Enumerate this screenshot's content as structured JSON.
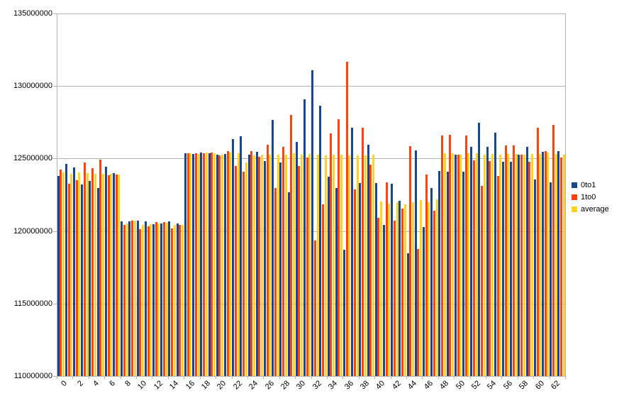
{
  "chart_data": {
    "type": "bar",
    "title": "",
    "xlabel": "",
    "ylabel": "",
    "legend_position": "right",
    "grid": "horizontal",
    "y_axis": {
      "min": 110000000,
      "max": 135000000,
      "step": 5000000,
      "tick_labels": [
        "110000000",
        "115000000",
        "120000000",
        "125000000",
        "130000000",
        "135000000"
      ]
    },
    "x_axis": {
      "labeled_every": 2,
      "tick_labels": [
        "0",
        "2",
        "4",
        "6",
        "8",
        "10",
        "12",
        "14",
        "16",
        "18",
        "20",
        "22",
        "24",
        "26",
        "28",
        "30",
        "32",
        "34",
        "36",
        "38",
        "40",
        "42",
        "44",
        "46",
        "48",
        "50",
        "52",
        "54",
        "56",
        "58",
        "60",
        "62"
      ]
    },
    "categories": [
      0,
      1,
      2,
      3,
      4,
      5,
      6,
      7,
      8,
      9,
      10,
      11,
      12,
      13,
      14,
      15,
      16,
      17,
      18,
      19,
      20,
      21,
      22,
      23,
      24,
      25,
      26,
      27,
      28,
      29,
      30,
      31,
      32,
      33,
      34,
      35,
      36,
      37,
      38,
      39,
      40,
      41,
      42,
      43,
      44,
      45,
      46,
      47,
      48,
      49,
      50,
      51,
      52,
      53,
      54,
      55,
      56,
      57,
      58,
      59,
      60,
      61,
      62,
      63
    ],
    "series": [
      {
        "name": "0to1",
        "color": "#17478f",
        "values": [
          123780000,
          124620000,
          124410000,
          123220000,
          123450000,
          122960000,
          124450000,
          124000000,
          120650000,
          120680000,
          120730000,
          120680000,
          120470000,
          120520000,
          120680000,
          120520000,
          125370000,
          125320000,
          125400000,
          125360000,
          125290000,
          125330000,
          126330000,
          126560000,
          125270000,
          125460000,
          124820000,
          127650000,
          124720000,
          122690000,
          126170000,
          129100000,
          131090000,
          128660000,
          123760000,
          122950000,
          118720000,
          127110000,
          123290000,
          125930000,
          123290000,
          120440000,
          123250000,
          122100000,
          118490000,
          125550000,
          120260000,
          122960000,
          124150000,
          124100000,
          125290000,
          124100000,
          125820000,
          127490000,
          125790000,
          126790000,
          124780000,
          124760000,
          125270000,
          125820000,
          123540000,
          125450000,
          123340000,
          125520000
        ]
      },
      {
        "name": "1to0",
        "color": "#ff420e",
        "values": [
          124250000,
          123270000,
          123500000,
          124710000,
          124360000,
          124900000,
          123870000,
          123910000,
          120410000,
          120720000,
          120110000,
          120320000,
          120600000,
          120630000,
          120160000,
          120440000,
          125350000,
          125350000,
          125370000,
          125400000,
          125240000,
          125520000,
          124460000,
          124100000,
          125530000,
          125130000,
          125950000,
          122960000,
          125820000,
          128000000,
          124480000,
          125050000,
          119370000,
          121830000,
          126740000,
          127690000,
          131660000,
          122880000,
          127110000,
          124590000,
          120930000,
          123370000,
          120730000,
          121550000,
          125840000,
          118760000,
          123900000,
          121400000,
          126590000,
          126620000,
          125290000,
          126590000,
          124880000,
          123130000,
          124830000,
          123810000,
          125890000,
          125890000,
          125270000,
          124800000,
          127110000,
          125500000,
          127310000,
          125080000
        ]
      },
      {
        "name": "average",
        "color": "#ffd320",
        "values": [
          124020000,
          123960000,
          124050000,
          123980000,
          123960000,
          123930000,
          123930000,
          123900000,
          120510000,
          120700000,
          120400000,
          120480000,
          120530000,
          120560000,
          120420000,
          120400000,
          125360000,
          125330000,
          125390000,
          125380000,
          125270000,
          125420000,
          125380000,
          124750000,
          125220000,
          125270000,
          125280000,
          125260000,
          125270000,
          125360000,
          125290000,
          125320000,
          125250000,
          125240000,
          125250000,
          125270000,
          125240000,
          125210000,
          125200000,
          125250000,
          122040000,
          121880000,
          121990000,
          121830000,
          122000000,
          122120000,
          122000000,
          122180000,
          125360000,
          125350000,
          125290000,
          125360000,
          125350000,
          125280000,
          125310000,
          125290000,
          125330000,
          125320000,
          125270000,
          125310000,
          125340000,
          125400000,
          125330000,
          125280000
        ]
      }
    ]
  },
  "legend": {
    "items": [
      {
        "label": "0to1"
      },
      {
        "label": "1to0"
      },
      {
        "label": "average"
      }
    ]
  },
  "colors": {
    "grid": "#b3b3b3",
    "text": "#000000",
    "background": "#ffffff"
  }
}
